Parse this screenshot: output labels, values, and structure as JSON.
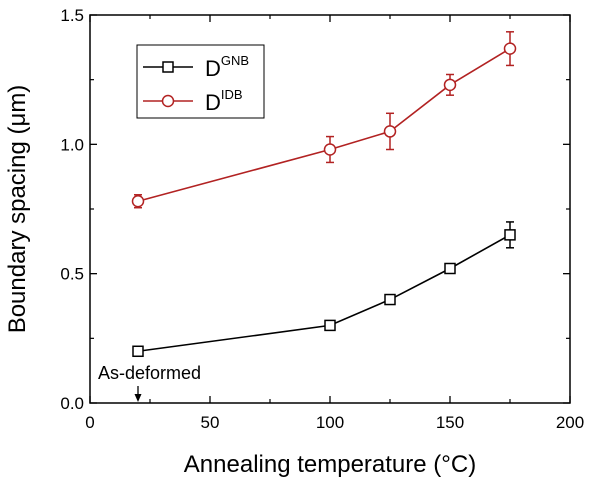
{
  "chart_data": {
    "type": "line",
    "xlabel": "Annealing temperature (°C)",
    "ylabel": "Boundary spacing (μm)",
    "xlim": [
      0,
      200
    ],
    "ylim": [
      0.0,
      1.5
    ],
    "xticks": [
      0,
      50,
      100,
      150,
      200
    ],
    "xtick_labels": [
      "0",
      "50",
      "100",
      "150",
      "200"
    ],
    "yticks": [
      0.0,
      0.5,
      1.0,
      1.5
    ],
    "ytick_labels": [
      "0.0",
      "0.5",
      "1.0",
      "1.5"
    ],
    "grid": false,
    "legend_position": "top-left",
    "series": [
      {
        "name_main": "D",
        "name_sup": "GNB",
        "color": "#000000",
        "marker": "square",
        "x": [
          20,
          100,
          125,
          150,
          175
        ],
        "y": [
          0.2,
          0.3,
          0.4,
          0.52,
          0.65
        ],
        "yerr": [
          0.01,
          0.01,
          0.015,
          0.015,
          0.05
        ]
      },
      {
        "name_main": "D",
        "name_sup": "IDB",
        "color": "#b22222",
        "marker": "circle",
        "x": [
          20,
          100,
          125,
          150,
          175
        ],
        "y": [
          0.78,
          0.98,
          1.05,
          1.23,
          1.37
        ],
        "yerr": [
          0.025,
          0.05,
          0.07,
          0.04,
          0.065
        ]
      }
    ],
    "annotation": {
      "text": "As-deformed",
      "x": 20
    }
  }
}
